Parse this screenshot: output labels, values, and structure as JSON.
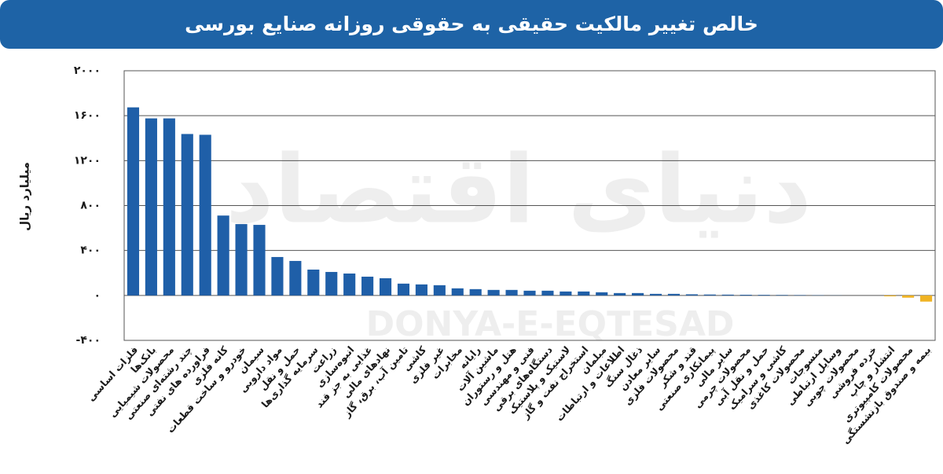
{
  "chart_data": {
    "type": "bar",
    "title": "خالص تغییر مالکیت حقیقی به حقوقی روزانه صنایع بورسی",
    "y_label": "میلیارد ریال",
    "watermark": [
      "دنیای اقتصاد",
      "DONYA-E-EQTESAD"
    ],
    "categories": [
      "فلزات اساسی",
      "بانک‌ها",
      "محصولات شیمیایی",
      "چند رشته‌ای صنعتی",
      "فراورده های نفتی",
      "کانه فلزی",
      "خودرو و ساخت قطعات",
      "سیمان",
      "مواد دارویی",
      "حمل و نقل",
      "سرمایه گذاری‌ها",
      "زراعت",
      "انبوه‌سازی",
      "غذایی به جز قند",
      "نهادهای مالی",
      "تامین آب، برق، گاز",
      "کاشی",
      "غیر فلزی",
      "مخابرات",
      "رایانه",
      "ماشین آلات",
      "هتل و رستوران",
      "فنی و مهندسی",
      "دستگاه‌های برقی",
      "لاستیک و پلاستیک",
      "استخراج نفت و گاز",
      "مبلمان",
      "اطلاعات و ارتباطات",
      "ذغال سنگ",
      "سایر معادن",
      "محصولات فلزی",
      "قند و شکر",
      "پیمانکاری صنعتی",
      "سایر مالی",
      "محصولات چرمی",
      "حمل و نقل آبی",
      "کاشی و سرامیک",
      "محصولات کاغذی",
      "منسوجات",
      "وسایل ارتباطی",
      "محصولات چوبی",
      "خرده فروشی",
      "انتشار و چاپ",
      "محصولات کامپیوتری",
      "بیمه و صندوق بازنشستگی"
    ],
    "values": [
      1674,
      1576,
      1576,
      1437,
      1430,
      711,
      635,
      628,
      342,
      307,
      230,
      209,
      195,
      167,
      153,
      105,
      98,
      91,
      63,
      56,
      49,
      49,
      42,
      42,
      35,
      35,
      28,
      21,
      21,
      14,
      14,
      10,
      8,
      7,
      6,
      5,
      4,
      3,
      2,
      1,
      0,
      0,
      -8,
      -20,
      -55
    ],
    "color": "#1f5fa8",
    "negative_color": "#f0b323",
    "ylim": [
      -400,
      2000
    ],
    "yticks": [
      {
        "value": -400,
        "label": "-۴۰۰"
      },
      {
        "value": 0,
        "label": "۰"
      },
      {
        "value": 400,
        "label": "۴۰۰"
      },
      {
        "value": 800,
        "label": "۸۰۰"
      },
      {
        "value": 1200,
        "label": "۱۲۰۰"
      },
      {
        "value": 1600,
        "label": "۱۶۰۰"
      },
      {
        "value": 2000,
        "label": "۲۰۰۰"
      }
    ],
    "grid": true
  }
}
